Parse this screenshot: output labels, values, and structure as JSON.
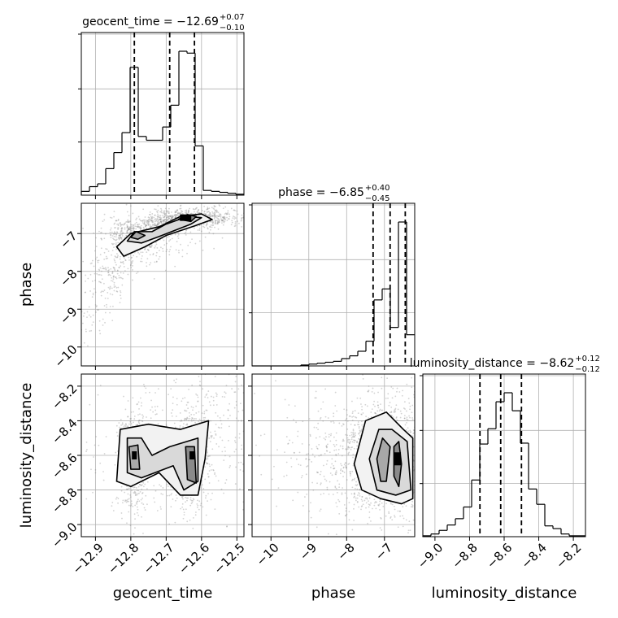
{
  "chart_data": {
    "type": "corner",
    "parameters": [
      "geocent_time",
      "phase",
      "luminosity_distance"
    ],
    "titles": {
      "geocent_time": {
        "name": "geocent_time",
        "median": "−12.69",
        "plus": "+0.07",
        "minus": "−0.10"
      },
      "phase": {
        "name": "phase",
        "median": "−6.85",
        "plus": "+0.40",
        "minus": "−0.45"
      },
      "luminosity_distance": {
        "name": "luminosity_distance",
        "median": "−8.62",
        "plus": "+0.12",
        "minus": "−0.12"
      }
    },
    "axis_labels": {
      "geocent_time": "geocent_time",
      "phase": "phase",
      "luminosity_distance": "luminosity_distance"
    },
    "ranges": {
      "geocent_time": [
        -12.94,
        -12.48
      ],
      "phase": [
        -10.5,
        -6.2
      ],
      "luminosity_distance": [
        -9.07,
        -8.13
      ]
    },
    "ticks": {
      "geocent_time": [
        -12.9,
        -12.8,
        -12.7,
        -12.6,
        -12.5
      ],
      "phase": [
        -10,
        -9,
        -8,
        -7
      ],
      "luminosity_distance": [
        -9.0,
        -8.8,
        -8.6,
        -8.4,
        -8.2
      ]
    },
    "tick_labels": {
      "geocent_time": [
        "−12.9",
        "−12.8",
        "−12.7",
        "−12.6",
        "−12.5"
      ],
      "phase": [
        "−10",
        "−9",
        "−8",
        "−7"
      ],
      "luminosity_distance": [
        "−9.0",
        "−8.8",
        "−8.6",
        "−8.4",
        "−8.2"
      ]
    },
    "quantiles": {
      "geocent_time": [
        -12.79,
        -12.69,
        -12.62
      ],
      "phase": [
        -7.3,
        -6.85,
        -6.45
      ],
      "luminosity_distance": [
        -8.74,
        -8.62,
        -8.5
      ]
    },
    "histograms": {
      "geocent_time": {
        "edges": [
          -12.94,
          -12.917,
          -12.894,
          -12.871,
          -12.848,
          -12.825,
          -12.802,
          -12.779,
          -12.756,
          -12.733,
          -12.71,
          -12.687,
          -12.664,
          -12.641,
          -12.618,
          -12.595,
          -12.572,
          -12.549,
          -12.526,
          -12.503,
          -12.48
        ],
        "counts": [
          4,
          9,
          12,
          28,
          45,
          66,
          135,
          62,
          58,
          58,
          72,
          95,
          152,
          150,
          52,
          5,
          4,
          3,
          2,
          1
        ]
      },
      "phase": {
        "edges": [
          -10.5,
          -10.285,
          -10.07,
          -9.855,
          -9.64,
          -9.425,
          -9.21,
          -8.995,
          -8.78,
          -8.565,
          -8.35,
          -8.135,
          -7.92,
          -7.705,
          -7.49,
          -7.275,
          -7.06,
          -6.845,
          -6.63,
          -6.415,
          -6.2
        ],
        "counts": [
          0,
          0,
          0,
          0,
          0,
          0,
          1,
          2,
          3,
          4,
          5,
          8,
          11,
          16,
          27,
          72,
          84,
          42,
          157,
          34
        ]
      },
      "luminosity_distance": {
        "edges": [
          -9.07,
          -9.023,
          -8.976,
          -8.929,
          -8.882,
          -8.835,
          -8.788,
          -8.741,
          -8.694,
          -8.647,
          -8.6,
          -8.553,
          -8.506,
          -8.459,
          -8.412,
          -8.365,
          -8.318,
          -8.271,
          -8.224,
          -8.177,
          -8.13
        ],
        "counts": [
          1,
          3,
          7,
          13,
          20,
          33,
          63,
          103,
          120,
          150,
          160,
          140,
          104,
          53,
          36,
          12,
          9,
          3,
          1,
          1
        ]
      }
    },
    "grid": true,
    "colors": {
      "hist": "#000000",
      "scatter": "#808080",
      "contour": "#000000",
      "grid": "#b0b0b0"
    }
  }
}
